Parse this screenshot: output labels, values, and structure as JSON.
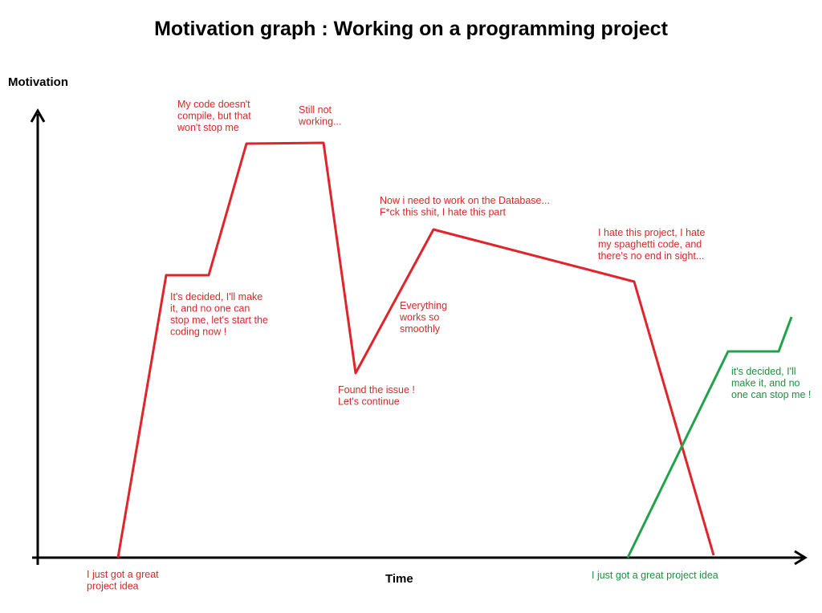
{
  "title": "Motivation graph : Working on a programming project",
  "y_axis_label": "Motivation",
  "x_axis_label": "Time",
  "annotations": [
    {
      "lines": [
        "I just got a great",
        "project idea"
      ]
    },
    {
      "lines": [
        "It's decided, I'll make",
        "it, and no one can",
        "stop me, let's start the",
        "coding now !"
      ]
    },
    {
      "lines": [
        "My code doesn't",
        "compile, but that",
        "won't stop me"
      ]
    },
    {
      "lines": [
        "Still not",
        "working..."
      ]
    },
    {
      "lines": [
        "Found the issue !",
        "Let's continue"
      ]
    },
    {
      "lines": [
        "Everything",
        "works so",
        "smoothly"
      ]
    },
    {
      "lines": [
        "Now i need to work on the Database...",
        "F*ck this shit, I hate this part"
      ]
    },
    {
      "lines": [
        "I hate this project, I hate",
        "my spaghetti code, and",
        "there's no end in sight..."
      ]
    },
    {
      "lines": [
        "it's decided, I'll",
        "make it, and no",
        "one can stop me !"
      ]
    },
    {
      "lines": [
        "I just got a great project idea"
      ]
    }
  ]
}
